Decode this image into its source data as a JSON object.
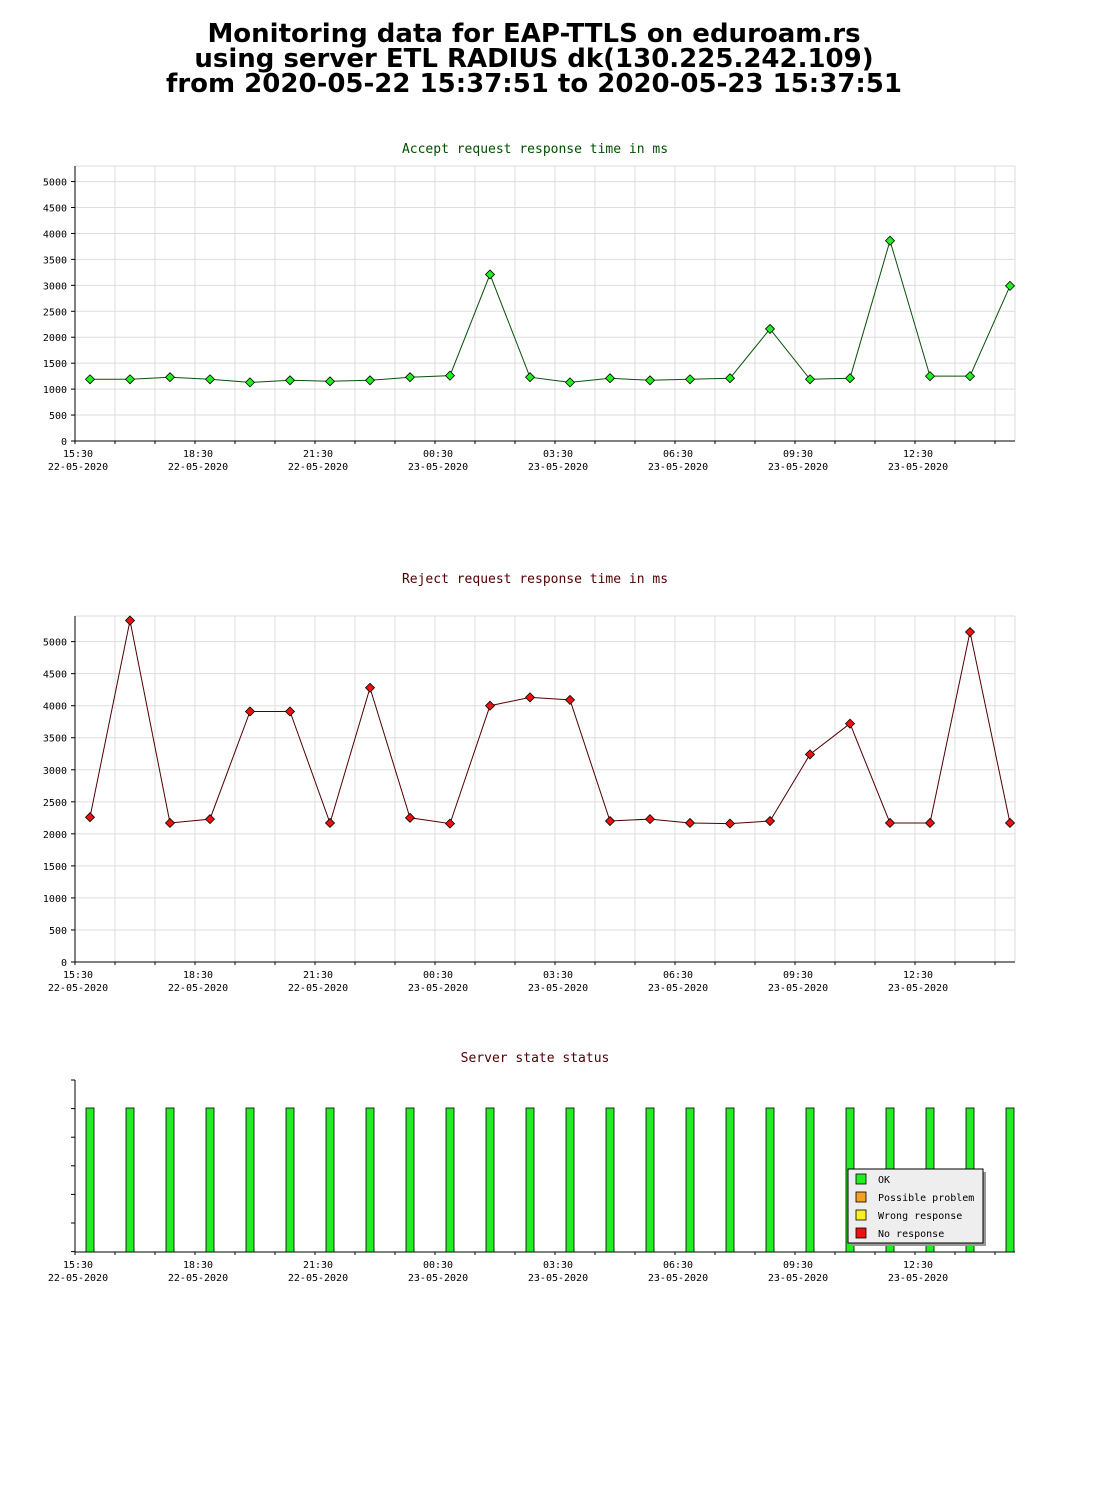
{
  "page": {
    "title_lines": [
      "Monitoring data for EAP-TTLS on eduroam.rs",
      "using server ETL RADIUS dk(130.225.242.109)",
      "from 2020-05-22 15:37:51 to 2020-05-23 15:37:51"
    ]
  },
  "colors": {
    "accept_title": "#005000",
    "reject_title": "#500000",
    "status_title": "#500000",
    "accept_point": "#22ee22",
    "reject_point": "#ee1111",
    "status_bar": "#22ee22",
    "grid": "#dddddd"
  },
  "chart_data": [
    {
      "type": "line",
      "title": "Accept request response time in ms",
      "x_tick_labels": [
        [
          "15:30",
          "22-05-2020"
        ],
        [
          "18:30",
          "22-05-2020"
        ],
        [
          "21:30",
          "22-05-2020"
        ],
        [
          "00:30",
          "23-05-2020"
        ],
        [
          "03:30",
          "23-05-2020"
        ],
        [
          "06:30",
          "23-05-2020"
        ],
        [
          "09:30",
          "23-05-2020"
        ],
        [
          "12:30",
          "23-05-2020"
        ]
      ],
      "y_ticks": [
        0,
        500,
        1000,
        1500,
        2000,
        2500,
        3000,
        3500,
        4000,
        4500,
        5000
      ],
      "ylim": [
        0,
        5300
      ],
      "x": [
        "15:37",
        "16:37",
        "17:37",
        "18:37",
        "19:37",
        "20:37",
        "21:37",
        "22:37",
        "23:37",
        "00:37",
        "01:37",
        "02:37",
        "03:37",
        "04:37",
        "05:37",
        "06:37",
        "07:37",
        "08:37",
        "09:37",
        "10:37",
        "11:37",
        "12:37",
        "13:37",
        "14:37"
      ],
      "values": [
        1190,
        1190,
        1230,
        1190,
        1130,
        1170,
        1150,
        1170,
        1230,
        1260,
        3210,
        1230,
        1130,
        1210,
        1170,
        1190,
        1210,
        2160,
        1190,
        1210,
        3860,
        1250,
        1250,
        2990
      ],
      "grid": true
    },
    {
      "type": "line",
      "title": "Reject request response time in ms",
      "x_tick_labels": [
        [
          "15:30",
          "22-05-2020"
        ],
        [
          "18:30",
          "22-05-2020"
        ],
        [
          "21:30",
          "22-05-2020"
        ],
        [
          "00:30",
          "23-05-2020"
        ],
        [
          "03:30",
          "23-05-2020"
        ],
        [
          "06:30",
          "23-05-2020"
        ],
        [
          "09:30",
          "23-05-2020"
        ],
        [
          "12:30",
          "23-05-2020"
        ]
      ],
      "y_ticks": [
        0,
        500,
        1000,
        1500,
        2000,
        2500,
        3000,
        3500,
        4000,
        4500,
        5000
      ],
      "ylim": [
        0,
        5400
      ],
      "x": [
        "15:37",
        "16:37",
        "17:37",
        "18:37",
        "19:37",
        "20:37",
        "21:37",
        "22:37",
        "23:37",
        "00:37",
        "01:37",
        "02:37",
        "03:37",
        "04:37",
        "05:37",
        "06:37",
        "07:37",
        "08:37",
        "09:37",
        "10:37",
        "11:37",
        "12:37",
        "13:37",
        "14:37"
      ],
      "values": [
        2260,
        5330,
        2170,
        2230,
        3910,
        3910,
        2170,
        4280,
        2250,
        2160,
        4000,
        4130,
        4090,
        2200,
        2230,
        2170,
        2160,
        2200,
        3240,
        3720,
        2170,
        2170,
        5150,
        2170
      ],
      "grid": true
    },
    {
      "type": "bar",
      "title": "Server state status",
      "x_tick_labels": [
        [
          "15:30",
          "22-05-2020"
        ],
        [
          "18:30",
          "22-05-2020"
        ],
        [
          "21:30",
          "22-05-2020"
        ],
        [
          "00:30",
          "23-05-2020"
        ],
        [
          "03:30",
          "23-05-2020"
        ],
        [
          "06:30",
          "23-05-2020"
        ],
        [
          "09:30",
          "23-05-2020"
        ],
        [
          "12:30",
          "23-05-2020"
        ]
      ],
      "x": [
        "15:37",
        "16:37",
        "17:37",
        "18:37",
        "19:37",
        "20:37",
        "21:37",
        "22:37",
        "23:37",
        "00:37",
        "01:37",
        "02:37",
        "03:37",
        "04:37",
        "05:37",
        "06:37",
        "07:37",
        "08:37",
        "09:37",
        "10:37",
        "11:37",
        "12:37",
        "13:37",
        "14:37"
      ],
      "values": [
        "OK",
        "OK",
        "OK",
        "OK",
        "OK",
        "OK",
        "OK",
        "OK",
        "OK",
        "OK",
        "OK",
        "OK",
        "OK",
        "OK",
        "OK",
        "OK",
        "OK",
        "OK",
        "OK",
        "OK",
        "OK",
        "OK",
        "OK",
        "OK"
      ],
      "legend": {
        "position": "bottom-right",
        "entries": [
          {
            "label": "OK",
            "color": "#22ee22"
          },
          {
            "label": "Possible problem",
            "color": "#f4a020"
          },
          {
            "label": "Wrong response",
            "color": "#f8f020"
          },
          {
            "label": "No response",
            "color": "#ee1111"
          }
        ]
      },
      "grid": false
    }
  ]
}
